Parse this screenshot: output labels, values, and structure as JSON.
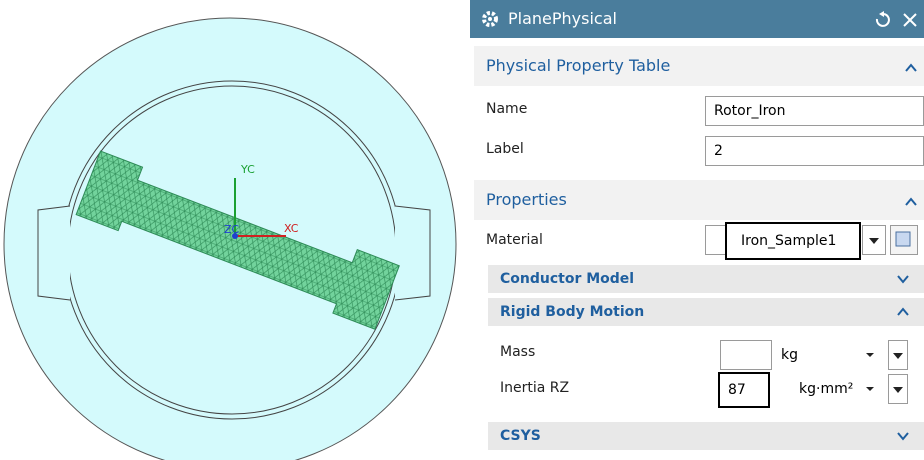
{
  "viewport": {
    "axes": {
      "y": "YC",
      "x": "XC",
      "z": "ZC"
    }
  },
  "dialog": {
    "title": "PlanePhysical",
    "sections": [
      {
        "title": "Physical Property Table",
        "fields": [
          {
            "label": "Name",
            "value": "Rotor_Iron"
          },
          {
            "label": "Label",
            "value": "2"
          }
        ]
      },
      {
        "title": "Properties",
        "fields": [
          {
            "label": "Material",
            "value": "Iron_Sample1"
          }
        ],
        "subsections": [
          {
            "title": "Conductor Model"
          },
          {
            "title": "Rigid Body Motion",
            "fields": [
              {
                "label": "Mass",
                "unit": "kg"
              },
              {
                "label": "Inertia RZ",
                "value": "87",
                "unit": "kg·mm²"
              }
            ]
          },
          {
            "title": "CSYS"
          }
        ]
      }
    ]
  }
}
